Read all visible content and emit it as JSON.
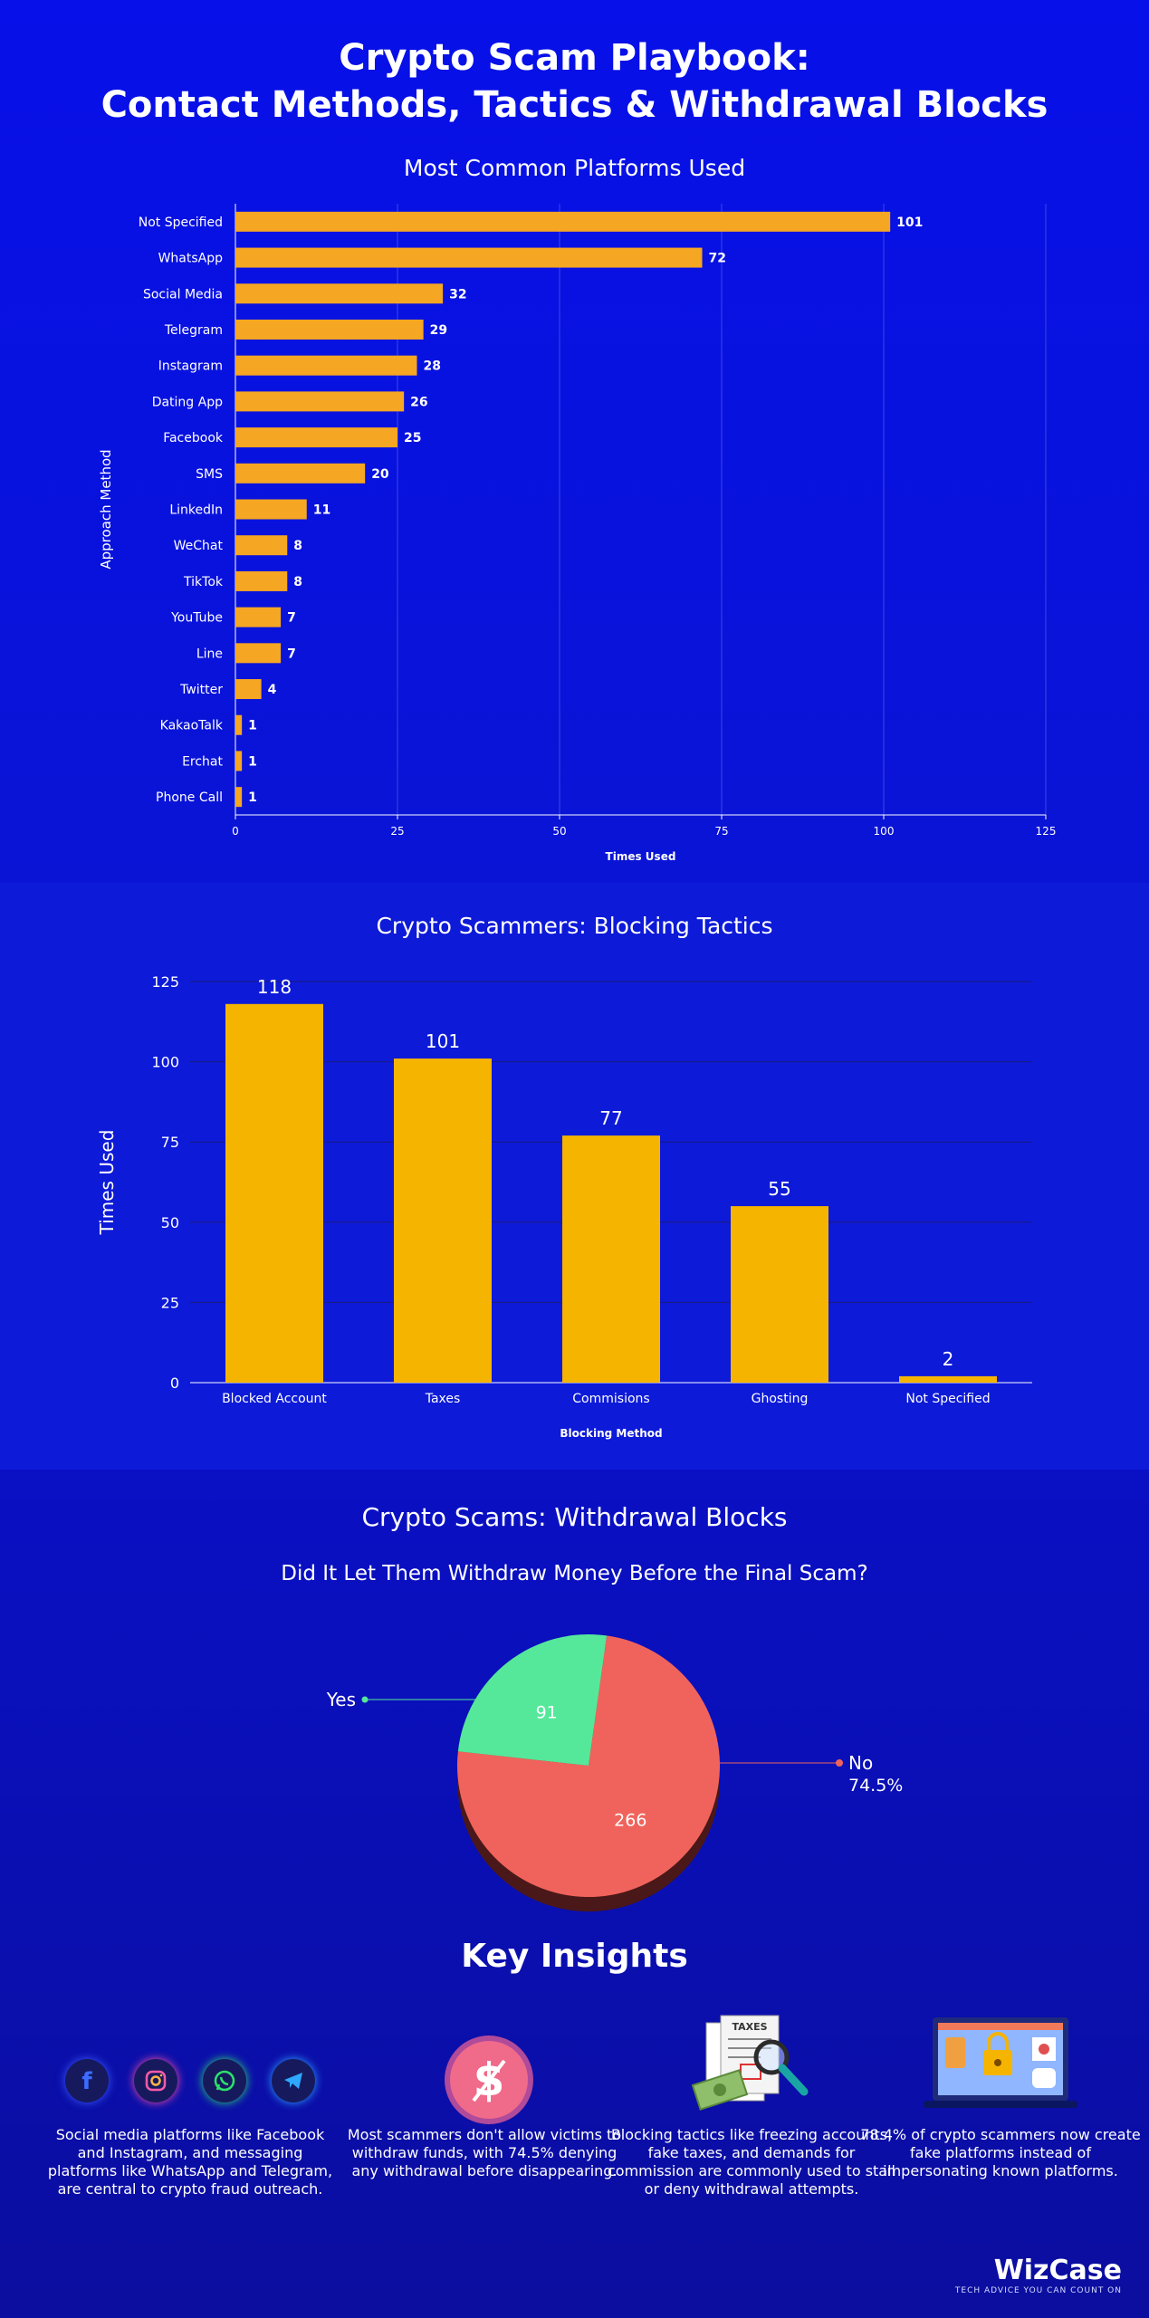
{
  "title_line1": "Crypto Scam Playbook:",
  "title_line2": "Contact Methods, Tactics & Withdrawal Blocks",
  "chart_data": [
    {
      "type": "bar",
      "orientation": "horizontal",
      "title": "Most Common Platforms Used",
      "xlabel": "Times Used",
      "ylabel": "Approach Method",
      "categories": [
        "Not Specified",
        "WhatsApp",
        "Social Media",
        "Telegram",
        "Instagram",
        "Dating App",
        "Facebook",
        "SMS",
        "LinkedIn",
        "WeChat",
        "TikTok",
        "YouTube",
        "Line",
        "Twitter",
        "KakaoTalk",
        "Erchat",
        "Phone Call"
      ],
      "values": [
        101,
        72,
        32,
        29,
        28,
        26,
        25,
        20,
        11,
        8,
        8,
        7,
        7,
        4,
        1,
        1,
        1
      ],
      "xlim": [
        0,
        125
      ],
      "ticks": [
        0,
        25,
        50,
        75,
        100,
        125
      ],
      "grid": "vertical",
      "bar_color": "#f5a623"
    },
    {
      "type": "bar",
      "orientation": "vertical",
      "title": "Crypto Scammers: Blocking Tactics",
      "xlabel": "Blocking Method",
      "ylabel": "Times Used",
      "categories": [
        "Blocked Account",
        "Taxes",
        "Commisions",
        "Ghosting",
        "Not Specified"
      ],
      "values": [
        118,
        101,
        77,
        55,
        2
      ],
      "ylim": [
        0,
        125
      ],
      "ticks": [
        0,
        25,
        50,
        75,
        100,
        125
      ],
      "grid": "horizontal",
      "bar_color": "#f5b400"
    },
    {
      "type": "pie",
      "title": "Crypto Scams: Withdrawal Blocks",
      "subtitle": "Did It Let Them Withdraw Money Before the Final Scam?",
      "slices": [
        {
          "label": "Yes",
          "value": 91,
          "color": "#55e89a",
          "dark": "#2a6b3e"
        },
        {
          "label": "No",
          "value": 266,
          "percent_label": "74.5%",
          "color": "#f0635c",
          "dark": "#4a1818"
        }
      ]
    }
  ],
  "insights": {
    "title": "Key Insights",
    "items": [
      {
        "text": "Social media platforms like Facebook and Instagram, and messaging platforms like WhatsApp and Telegram, are central to crypto fraud outreach."
      },
      {
        "text": "Most scammers don't allow victims to withdraw funds, with 74.5% denying any withdrawal before disappearing."
      },
      {
        "text": "Blocking tactics like freezing accounts, fake taxes, and demands for commission are commonly used to stall or deny withdrawal attempts."
      },
      {
        "text": "78.4% of crypto scammers now create fake platforms instead of impersonating known platforms."
      }
    ],
    "icons": [
      "facebook-icon",
      "instagram-icon",
      "whatsapp-icon",
      "telegram-icon",
      "dollar-icon",
      "tax-document-icon",
      "laptop-lock-icon"
    ],
    "taxes_doc_label": "TAXES"
  },
  "brand": {
    "name": "WizCase",
    "tagline": "TECH ADVICE YOU CAN COUNT ON"
  }
}
